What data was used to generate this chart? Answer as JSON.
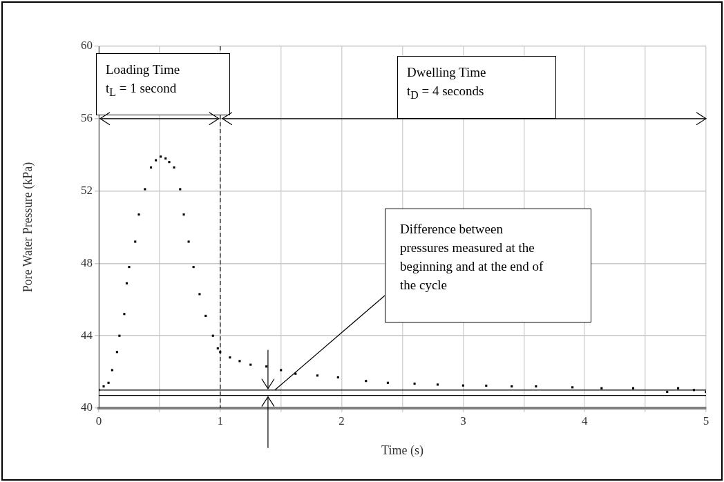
{
  "chart_data": {
    "type": "scatter",
    "xlabel": "Time (s)",
    "ylabel": "Pore Water Pressure (kPa)",
    "x": [
      0,
      0.04,
      0.08,
      0.11,
      0.15,
      0.17,
      0.21,
      0.23,
      0.25,
      0.3,
      0.33,
      0.38,
      0.43,
      0.47,
      0.51,
      0.55,
      0.58,
      0.62,
      0.67,
      0.7,
      0.74,
      0.78,
      0.83,
      0.88,
      0.94,
      0.98,
      1.0,
      1.08,
      1.16,
      1.25,
      1.38,
      1.5,
      1.62,
      1.8,
      1.97,
      2.2,
      2.38,
      2.6,
      2.79,
      3.0,
      3.19,
      3.4,
      3.6,
      3.9,
      4.14,
      4.4,
      4.68,
      4.77,
      4.9,
      5.0
    ],
    "values": [
      41.0,
      41.2,
      41.4,
      42.1,
      43.1,
      44.0,
      45.2,
      46.9,
      47.8,
      49.2,
      50.7,
      52.1,
      53.3,
      53.7,
      53.9,
      53.8,
      53.6,
      53.3,
      52.1,
      50.7,
      49.2,
      47.8,
      46.3,
      45.1,
      44.0,
      43.3,
      43.1,
      42.8,
      42.6,
      42.4,
      42.3,
      42.1,
      41.9,
      41.8,
      41.7,
      41.5,
      41.4,
      41.35,
      41.3,
      41.25,
      41.24,
      41.2,
      41.2,
      41.15,
      41.1,
      41.1,
      40.9,
      41.1,
      41.0,
      40.9
    ],
    "color": "#000000",
    "marker": "square",
    "grid": true,
    "legend": false,
    "xlim": [
      0,
      5
    ],
    "xticks": [
      0,
      {
        "value": 0.5,
        "label": null
      },
      1,
      {
        "value": 1.5,
        "label": null
      },
      2,
      {
        "value": 2.5,
        "label": null
      },
      3,
      {
        "value": 3.5,
        "label": null
      },
      4,
      {
        "value": 4.5,
        "label": null
      },
      5
    ],
    "ylim": [
      40,
      60
    ],
    "yticks": [
      40,
      44,
      48,
      52,
      56,
      60
    ],
    "ref_lines": [
      {
        "axis": "x",
        "value": 1,
        "line_style": "dashed",
        "color": "#000000"
      },
      {
        "axis": "y",
        "value": 41.0,
        "color": "#000000"
      },
      {
        "axis": "y",
        "value": 40.7,
        "color": "#000000"
      }
    ],
    "annotations": [
      "Loading Time\nt$_{L}$ = 1 second",
      "Dwelling Time\nt$_{D}$ = 4 seconds",
      {
        "text": "Difference between pressures measured at the beginning and at the end of the cycle",
        "x": 1.45,
        "y": 41.0
      }
    ]
  }
}
